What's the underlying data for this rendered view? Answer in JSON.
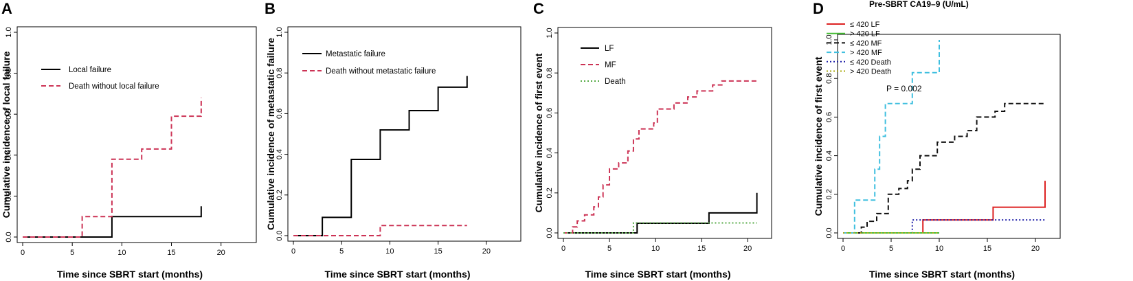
{
  "chart_data": [
    {
      "type": "line",
      "panel": "A",
      "xlabel": "Time since SBRT start (months)",
      "ylabel": "Cumulative incidence of local failure",
      "xlim": [
        0,
        23
      ],
      "ylim": [
        0,
        1.0
      ],
      "xticks": [
        "0",
        "5",
        "10",
        "15",
        "20"
      ],
      "yticks": [
        "0.0",
        "0.2",
        "0.4",
        "0.6",
        "0.8",
        "1.0"
      ],
      "legend": [
        {
          "label": "Local failure",
          "color": "#000000",
          "dash": "solid"
        },
        {
          "label": "Death without local failure",
          "color": "#cc3355",
          "dash": "dashed"
        }
      ],
      "series": [
        {
          "name": "Local failure",
          "x": [
            0,
            9,
            18
          ],
          "y": [
            0,
            0.1,
            0.15
          ]
        },
        {
          "name": "Death without local failure",
          "x": [
            0,
            6,
            9,
            10.5,
            12,
            15,
            18
          ],
          "y": [
            0,
            0.1,
            0.38,
            0.38,
            0.43,
            0.59,
            0.68
          ]
        }
      ]
    },
    {
      "type": "line",
      "panel": "B",
      "xlabel": "Time since SBRT start (months)",
      "ylabel": "Cumulative incidence of metastatic failure",
      "xlim": [
        0,
        23
      ],
      "ylim": [
        0,
        1.0
      ],
      "xticks": [
        "0",
        "5",
        "10",
        "15",
        "20"
      ],
      "yticks": [
        "0.0",
        "0.2",
        "0.4",
        "0.6",
        "0.8",
        "1.0"
      ],
      "legend": [
        {
          "label": "Metastatic failure",
          "color": "#000000",
          "dash": "solid"
        },
        {
          "label": "Death without metastatic failure",
          "color": "#cc3355",
          "dash": "dashed"
        }
      ],
      "series": [
        {
          "name": "Metastatic failure",
          "x": [
            0,
            3,
            6,
            9,
            12,
            15,
            18
          ],
          "y": [
            0,
            0.09,
            0.375,
            0.52,
            0.615,
            0.73,
            0.785
          ]
        },
        {
          "name": "Death without metastatic failure",
          "x": [
            0,
            9,
            18
          ],
          "y": [
            0,
            0.05,
            0.05
          ]
        }
      ]
    },
    {
      "type": "line",
      "panel": "C",
      "xlabel": "Time since SBRT start (months)",
      "ylabel": "Cumulative incidence of first event",
      "xlim": [
        0,
        22
      ],
      "ylim": [
        0,
        1.0
      ],
      "xticks": [
        "0",
        "5",
        "10",
        "15",
        "20"
      ],
      "yticks": [
        "0.0",
        "0.2",
        "0.4",
        "0.6",
        "0.8",
        "1.0"
      ],
      "legend": [
        {
          "label": "LF",
          "color": "#000000",
          "dash": "solid"
        },
        {
          "label": "MF",
          "color": "#cc3355",
          "dash": "dashed"
        },
        {
          "label": "Death",
          "color": "#55aa44",
          "dash": "dotted"
        }
      ],
      "series": [
        {
          "name": "LF",
          "x": [
            0,
            8,
            15.8,
            21
          ],
          "y": [
            0,
            0.048,
            0.1,
            0.2
          ]
        },
        {
          "name": "MF",
          "x": [
            0,
            1,
            1.5,
            2.3,
            3.3,
            3.8,
            4.3,
            5,
            6,
            7,
            7.6,
            8.2,
            9.8,
            10.2,
            12,
            13.5,
            14.5,
            16.2,
            17.2,
            21
          ],
          "y": [
            0,
            0.03,
            0.06,
            0.09,
            0.13,
            0.18,
            0.24,
            0.32,
            0.35,
            0.41,
            0.47,
            0.52,
            0.55,
            0.62,
            0.65,
            0.68,
            0.71,
            0.74,
            0.76,
            0.76
          ]
        },
        {
          "name": "Death",
          "x": [
            0,
            7.6,
            21
          ],
          "y": [
            0,
            0.05,
            0.05
          ]
        }
      ]
    },
    {
      "type": "line",
      "panel": "D",
      "xlabel": "Time since SBRT start (months)",
      "ylabel": "Cumulative incidence of first event",
      "xlim": [
        0,
        22
      ],
      "ylim": [
        0,
        1.0
      ],
      "xticks": [
        "0",
        "5",
        "10",
        "15",
        "20"
      ],
      "yticks": [
        "0.0",
        "0.2",
        "0.4",
        "0.6",
        "0.8",
        "1.0"
      ],
      "legend_title": "Pre-SBRT CA19–9 (U/mL)",
      "annotation": "P = 0.002",
      "legend": [
        {
          "label": "≤ 420 LF",
          "color": "#dd2222",
          "dash": "solid"
        },
        {
          "label": "> 420 LF",
          "color": "#44bb33",
          "dash": "solid"
        },
        {
          "label": "≤ 420 MF",
          "color": "#111111",
          "dash": "dashed"
        },
        {
          "label": "> 420 MF",
          "color": "#3fbfdf",
          "dash": "dashed"
        },
        {
          "label": "≤ 420 Death",
          "color": "#2222aa",
          "dash": "dotted"
        },
        {
          "label": "> 420 Death",
          "color": "#aaaa11",
          "dash": "dotted"
        }
      ],
      "series": [
        {
          "name": "≤ 420 LF",
          "x": [
            0,
            8.3,
            15.6,
            21
          ],
          "y": [
            0,
            0.067,
            0.133,
            0.27
          ]
        },
        {
          "name": "> 420 LF",
          "x": [
            0,
            10
          ],
          "y": [
            0,
            0
          ]
        },
        {
          "name": "≤ 420 MF",
          "x": [
            0,
            1.9,
            2.5,
            3.5,
            4.7,
            5.8,
            6.7,
            7.2,
            8,
            9.8,
            11.6,
            12.9,
            13.9,
            15.8,
            16.8,
            21
          ],
          "y": [
            0,
            0.03,
            0.06,
            0.1,
            0.2,
            0.23,
            0.27,
            0.33,
            0.4,
            0.47,
            0.5,
            0.53,
            0.6,
            0.63,
            0.67,
            0.67
          ]
        },
        {
          "name": "> 420 MF",
          "x": [
            0,
            1.2,
            3.3,
            3.8,
            4.4,
            7.2,
            10
          ],
          "y": [
            0,
            0.17,
            0.33,
            0.5,
            0.67,
            0.83,
            1.0
          ]
        },
        {
          "name": "≤ 420 Death",
          "x": [
            0,
            7.2,
            21
          ],
          "y": [
            0,
            0.067,
            0.067
          ]
        },
        {
          "name": "> 420 Death",
          "x": [
            0,
            10
          ],
          "y": [
            0,
            0
          ]
        }
      ]
    }
  ]
}
